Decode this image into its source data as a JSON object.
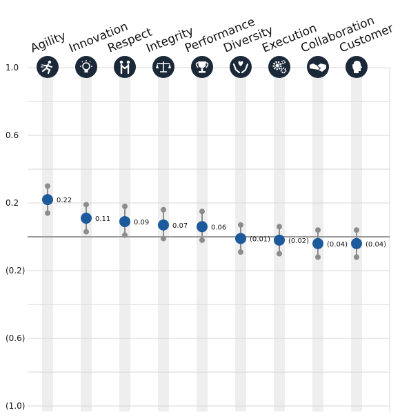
{
  "chart_data": {
    "type": "scatter",
    "title": "",
    "xlabel": "",
    "ylabel": "",
    "ylim": [
      -1.0,
      1.0
    ],
    "yticks": [
      1.0,
      0.6,
      0.2,
      -0.2,
      -0.6,
      -1.0
    ],
    "ytick_labels": [
      "1.0",
      "0.6",
      "0.2",
      "(0.2)",
      "(0.6)",
      "(1.0)"
    ],
    "grid": "horizontal",
    "zero_line": true,
    "categories": [
      "Agility",
      "Innovation",
      "Respect",
      "Integrity",
      "Performance",
      "Diversity",
      "Execution",
      "Collaboration",
      "Customer"
    ],
    "icons": [
      "running-person-icon",
      "lightbulb-icon",
      "handshake-people-icon",
      "scales-icon",
      "trophy-icon",
      "hands-heart-icon",
      "gears-icon",
      "handshake-icon",
      "customer-headset-icon"
    ],
    "series": [
      {
        "values": [
          0.22,
          0.11,
          0.09,
          0.07,
          0.06,
          -0.01,
          -0.02,
          -0.04,
          -0.04
        ],
        "labels": [
          "0.22",
          "0.11",
          "0.09",
          "0.07",
          "0.06",
          "(0.01)",
          "(0.02)",
          "(0.04)",
          "(0.04)"
        ],
        "lower": [
          0.14,
          0.03,
          0.01,
          -0.01,
          -0.02,
          -0.09,
          -0.1,
          -0.12,
          -0.12
        ],
        "upper": [
          0.3,
          0.19,
          0.18,
          0.16,
          0.15,
          0.07,
          0.06,
          0.04,
          0.04
        ]
      }
    ],
    "colors": {
      "point": "#1d5a9b",
      "whisker": "#8c8c8c",
      "band": "#eeeeee",
      "grid": "#d7d7d7",
      "zero": "#9a9a9a",
      "icon_bg": "#1b2838"
    }
  }
}
